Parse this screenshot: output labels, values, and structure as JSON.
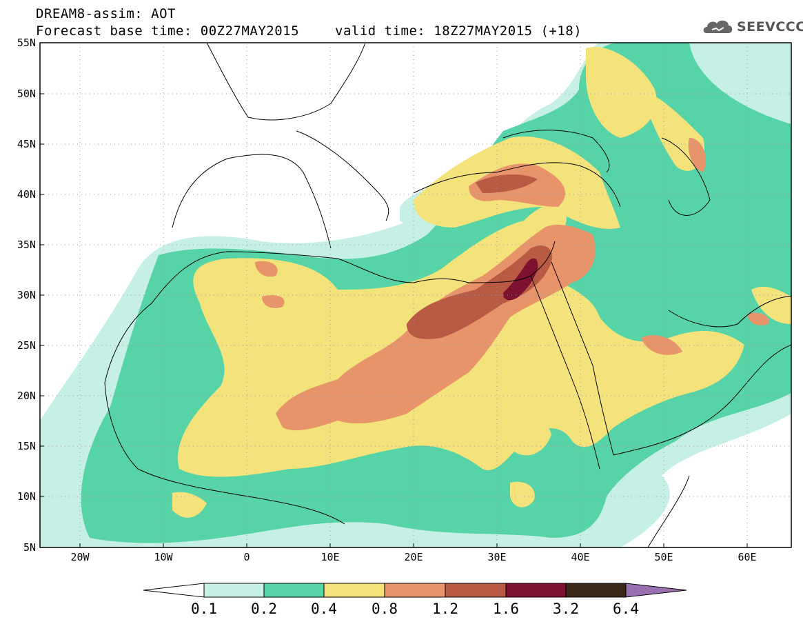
{
  "title": {
    "line1": "DREAM8-assim: AOT",
    "line2_left": "Forecast base time: 00Z27MAY2015",
    "line2_right": "valid time: 18Z27MAY2015 (+18)"
  },
  "logo": {
    "text": "SEEVCCC",
    "icon": "cloud-icon"
  },
  "map": {
    "lat_labels": [
      "55N",
      "50N",
      "45N",
      "40N",
      "35N",
      "30N",
      "25N",
      "20N",
      "15N",
      "10N",
      "5N"
    ],
    "lon_labels": [
      "20W",
      "10W",
      "0",
      "10E",
      "20E",
      "30E",
      "40E",
      "50E",
      "60E"
    ],
    "lon_range": [
      -25,
      65
    ],
    "lat_range": [
      5,
      55
    ],
    "grid": "dotted"
  },
  "colorbar": {
    "labels": [
      "0.1",
      "0.2",
      "0.4",
      "0.8",
      "1.2",
      "1.6",
      "3.2",
      "6.4"
    ],
    "colors": {
      "below": "#ffffff",
      "c1": "#c6efe6",
      "c2": "#56d4a8",
      "c3": "#f4e27a",
      "c4": "#e8946a",
      "c5": "#b85a44",
      "c6": "#7e1030",
      "c7": "#3c2818",
      "above": "#9a70b0"
    }
  }
}
